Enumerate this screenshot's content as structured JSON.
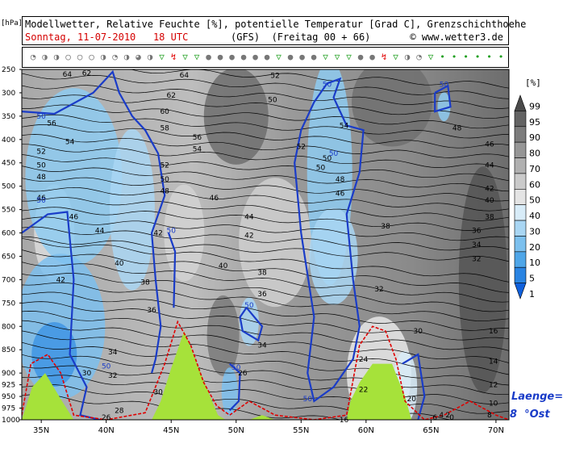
{
  "header": {
    "line1": "Modellwetter, Relative Feuchte [%], potentielle Temperatur [Grad C], Grenzschichthoehe",
    "date_line": "Sonntag, 11-07-2010   18 UTC",
    "model_line": "(GFS)  (Freitag 00 + 66)",
    "copyright": "© www.wetter3.de"
  },
  "corner_unit": "[hPa]",
  "legend": {
    "title": "[%]",
    "levels": [
      "99",
      "95",
      "90",
      "80",
      "70",
      "60",
      "50",
      "40",
      "30",
      "20",
      "10",
      "5",
      "1"
    ],
    "colors": [
      "#4a4a4a",
      "#636363",
      "#7c7c7c",
      "#969696",
      "#b0b0b0",
      "#cacaca",
      "#e4e4e4",
      "#d8ecf8",
      "#a9d6f3",
      "#7cc0ee",
      "#4fa6e8",
      "#2a84e2",
      "#1060dc"
    ]
  },
  "longitude_note": {
    "label": "Laenge=",
    "value": "8  °Ost"
  },
  "chart_data": {
    "type": "heatmap",
    "title": "Modellwetter, Relative Feuchte [%], potentielle Temperatur [Grad C], Grenzschichthoehe",
    "x_axis": {
      "labels": [
        "35N",
        "40N",
        "45N",
        "50N",
        "55N",
        "60N",
        "65N",
        "70N"
      ],
      "values": [
        35,
        40,
        45,
        50,
        55,
        60,
        65,
        70
      ],
      "range": [
        33.5,
        71
      ]
    },
    "y_axis": {
      "unit": "hPa",
      "labels": [
        "250",
        "300",
        "350",
        "400",
        "450",
        "500",
        "550",
        "600",
        "650",
        "700",
        "750",
        "800",
        "850",
        "900",
        "925",
        "950",
        "975",
        "1000"
      ],
      "values": [
        250,
        300,
        350,
        400,
        450,
        500,
        550,
        600,
        650,
        700,
        750,
        800,
        850,
        900,
        925,
        950,
        975,
        1000
      ],
      "range": [
        250,
        1000
      ]
    },
    "theta_contour_labels": [
      {
        "lat": 37.0,
        "p": 260,
        "text": "64"
      },
      {
        "lat": 38.5,
        "p": 258,
        "text": "62"
      },
      {
        "lat": 46.0,
        "p": 262,
        "text": "64"
      },
      {
        "lat": 45.0,
        "p": 305,
        "text": "62"
      },
      {
        "lat": 44.5,
        "p": 340,
        "text": "60"
      },
      {
        "lat": 44.5,
        "p": 375,
        "text": "58"
      },
      {
        "lat": 35.8,
        "p": 365,
        "text": "56"
      },
      {
        "lat": 37.2,
        "p": 405,
        "text": "54"
      },
      {
        "lat": 35.0,
        "p": 425,
        "text": "52"
      },
      {
        "lat": 35.0,
        "p": 455,
        "text": "50"
      },
      {
        "lat": 35.0,
        "p": 480,
        "text": "48"
      },
      {
        "lat": 35.0,
        "p": 525,
        "text": "46"
      },
      {
        "lat": 47.0,
        "p": 395,
        "text": "56"
      },
      {
        "lat": 47.0,
        "p": 420,
        "text": "54"
      },
      {
        "lat": 44.5,
        "p": 455,
        "text": "52"
      },
      {
        "lat": 44.5,
        "p": 485,
        "text": "50"
      },
      {
        "lat": 44.5,
        "p": 510,
        "text": "48"
      },
      {
        "lat": 48.3,
        "p": 525,
        "text": "46"
      },
      {
        "lat": 37.5,
        "p": 565,
        "text": "46"
      },
      {
        "lat": 39.5,
        "p": 595,
        "text": "44"
      },
      {
        "lat": 44.0,
        "p": 600,
        "text": "42"
      },
      {
        "lat": 51.0,
        "p": 565,
        "text": "44"
      },
      {
        "lat": 51.0,
        "p": 605,
        "text": "42"
      },
      {
        "lat": 49.0,
        "p": 670,
        "text": "40"
      },
      {
        "lat": 41.0,
        "p": 665,
        "text": "40"
      },
      {
        "lat": 36.5,
        "p": 700,
        "text": "42"
      },
      {
        "lat": 43.0,
        "p": 705,
        "text": "38"
      },
      {
        "lat": 52.0,
        "p": 685,
        "text": "38"
      },
      {
        "lat": 52.0,
        "p": 730,
        "text": "36"
      },
      {
        "lat": 43.5,
        "p": 765,
        "text": "36"
      },
      {
        "lat": 40.5,
        "p": 855,
        "text": "34"
      },
      {
        "lat": 52.0,
        "p": 840,
        "text": "34"
      },
      {
        "lat": 40.5,
        "p": 905,
        "text": "32"
      },
      {
        "lat": 38.5,
        "p": 900,
        "text": "30"
      },
      {
        "lat": 41.0,
        "p": 980,
        "text": "28"
      },
      {
        "lat": 40.0,
        "p": 995,
        "text": "26"
      },
      {
        "lat": 44.0,
        "p": 940,
        "text": "30"
      },
      {
        "lat": 50.5,
        "p": 900,
        "text": "26"
      },
      {
        "lat": 53.0,
        "p": 263,
        "text": "52"
      },
      {
        "lat": 52.8,
        "p": 315,
        "text": "50"
      },
      {
        "lat": 55.0,
        "p": 415,
        "text": "52"
      },
      {
        "lat": 56.5,
        "p": 460,
        "text": "50"
      },
      {
        "lat": 58.3,
        "p": 370,
        "text": "54"
      },
      {
        "lat": 57.0,
        "p": 440,
        "text": "50"
      },
      {
        "lat": 58.0,
        "p": 485,
        "text": "48"
      },
      {
        "lat": 58.0,
        "p": 515,
        "text": "46"
      },
      {
        "lat": 61.5,
        "p": 585,
        "text": "38"
      },
      {
        "lat": 61.0,
        "p": 720,
        "text": "32"
      },
      {
        "lat": 64.0,
        "p": 810,
        "text": "30"
      },
      {
        "lat": 59.8,
        "p": 870,
        "text": "24"
      },
      {
        "lat": 59.8,
        "p": 935,
        "text": "22"
      },
      {
        "lat": 63.5,
        "p": 955,
        "text": "20"
      },
      {
        "lat": 58.3,
        "p": 1000,
        "text": "16"
      },
      {
        "lat": 67.0,
        "p": 375,
        "text": "48"
      },
      {
        "lat": 69.5,
        "p": 410,
        "text": "46"
      },
      {
        "lat": 69.5,
        "p": 455,
        "text": "44"
      },
      {
        "lat": 69.5,
        "p": 505,
        "text": "42"
      },
      {
        "lat": 69.5,
        "p": 530,
        "text": "40"
      },
      {
        "lat": 69.5,
        "p": 565,
        "text": "38"
      },
      {
        "lat": 68.5,
        "p": 595,
        "text": "36"
      },
      {
        "lat": 68.5,
        "p": 625,
        "text": "34"
      },
      {
        "lat": 68.5,
        "p": 655,
        "text": "32"
      },
      {
        "lat": 69.8,
        "p": 810,
        "text": "16"
      },
      {
        "lat": 69.8,
        "p": 875,
        "text": "14"
      },
      {
        "lat": 69.8,
        "p": 925,
        "text": "12"
      },
      {
        "lat": 69.8,
        "p": 965,
        "text": "10"
      },
      {
        "lat": 69.5,
        "p": 990,
        "text": "8"
      },
      {
        "lat": 65.3,
        "p": 995,
        "text": "6"
      },
      {
        "lat": 65.8,
        "p": 990,
        "text": "4"
      },
      {
        "lat": 66.3,
        "p": 990,
        "text": "2"
      },
      {
        "lat": 66.6,
        "p": 995,
        "text": "0"
      }
    ],
    "rh50_contour_labels": [
      {
        "lat": 35.0,
        "p": 350,
        "text": "50"
      },
      {
        "lat": 35.0,
        "p": 530,
        "text": "50"
      },
      {
        "lat": 45.0,
        "p": 595,
        "text": "50"
      },
      {
        "lat": 40.0,
        "p": 885,
        "text": "50"
      },
      {
        "lat": 51.0,
        "p": 755,
        "text": "50"
      },
      {
        "lat": 50.0,
        "p": 888,
        "text": "50"
      },
      {
        "lat": 57.0,
        "p": 282,
        "text": "50"
      },
      {
        "lat": 57.5,
        "p": 430,
        "text": "50"
      },
      {
        "lat": 55.5,
        "p": 955,
        "text": "50"
      },
      {
        "lat": 66.0,
        "p": 282,
        "text": "50"
      }
    ],
    "terrain_peaks_lat": [
      35.3,
      46.0,
      59.8
    ]
  }
}
